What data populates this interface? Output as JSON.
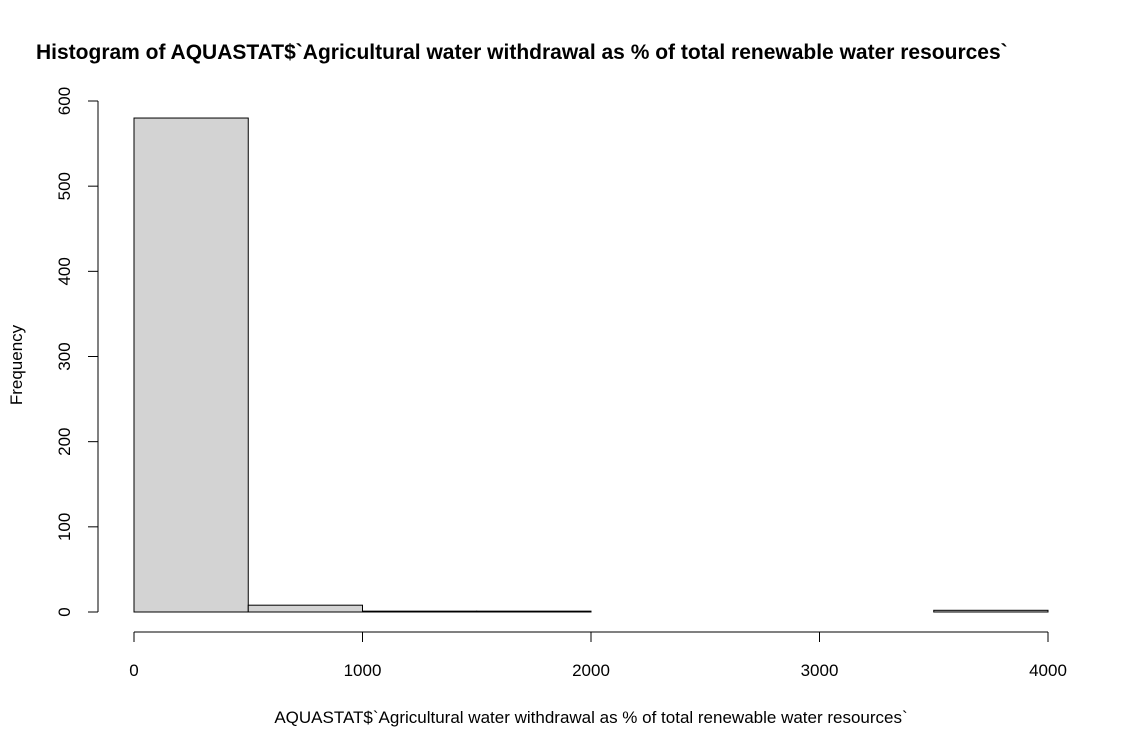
{
  "chart_data": {
    "type": "bar",
    "title": "Histogram of AQUASTAT$`Agricultural water withdrawal as % of total renewable water resources`",
    "xlabel": "AQUASTAT$`Agricultural water withdrawal as % of total renewable water resources`",
    "ylabel": "Frequency",
    "bin_edges": [
      0,
      500,
      1000,
      1500,
      2000,
      2500,
      3000,
      3500,
      4000
    ],
    "values": [
      580,
      8,
      1,
      1,
      0,
      0,
      0,
      2
    ],
    "xlim": [
      0,
      4000
    ],
    "ylim": [
      0,
      600
    ],
    "x_ticks": [
      0,
      1000,
      2000,
      3000,
      4000
    ],
    "y_ticks": [
      0,
      100,
      200,
      300,
      400,
      500,
      600
    ],
    "grid": false,
    "bar_color": "#d3d3d3",
    "edge_color": "#000000"
  }
}
